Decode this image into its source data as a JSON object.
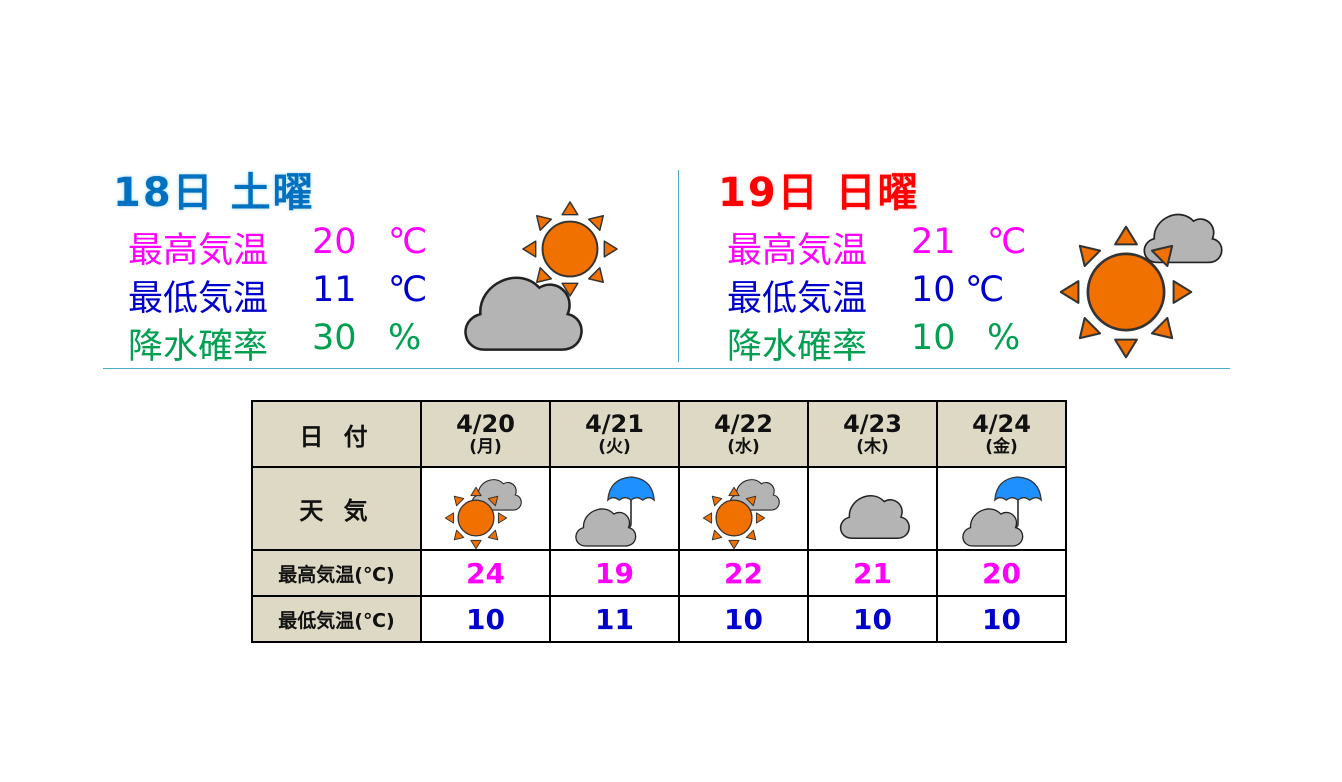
{
  "today": {
    "title": "18日 土曜",
    "title_color": "#0070c0",
    "weather_icon": "sun-behind-cloud",
    "high_label": "最高気温",
    "high_value": "20",
    "high_unit": "℃",
    "low_label": "最低気温",
    "low_value": "11",
    "low_unit": "℃",
    "rain_label": "降水確率",
    "rain_value": "30",
    "rain_unit": "%"
  },
  "tomorrow": {
    "title": "19日 日曜",
    "title_color": "#ff0000",
    "weather_icon": "sun-with-cloud",
    "high_label": "最高気温",
    "high_value": "21",
    "high_unit": "℃",
    "low_label": "最低気温",
    "low_value": "10",
    "low_unit": "℃",
    "rain_label": "降水確率",
    "rain_value": "10",
    "rain_unit": "%"
  },
  "colors": {
    "high": "#ff00ff",
    "low": "#0000cc",
    "rain": "#00a050",
    "sun": "#f07000",
    "cloud": "#b4b4b4",
    "umbrella": "#1e90ff",
    "header_bg": "#ddd9c4"
  },
  "forecast": {
    "row_labels": {
      "date": "日 付",
      "weather": "天 気",
      "high": "最高気温(℃)",
      "low": "最低気温(℃)"
    },
    "days": [
      {
        "date": "4/20",
        "dow": "(月)",
        "weather": "sunny-then-cloudy",
        "high": "24",
        "low": "10"
      },
      {
        "date": "4/21",
        "dow": "(火)",
        "weather": "cloudy-with-rain",
        "high": "19",
        "low": "11"
      },
      {
        "date": "4/22",
        "dow": "(水)",
        "weather": "sunny-then-cloudy",
        "high": "22",
        "low": "10"
      },
      {
        "date": "4/23",
        "dow": "(木)",
        "weather": "cloudy",
        "high": "21",
        "low": "10"
      },
      {
        "date": "4/24",
        "dow": "(金)",
        "weather": "cloudy-with-rain",
        "high": "20",
        "low": "10"
      }
    ]
  }
}
